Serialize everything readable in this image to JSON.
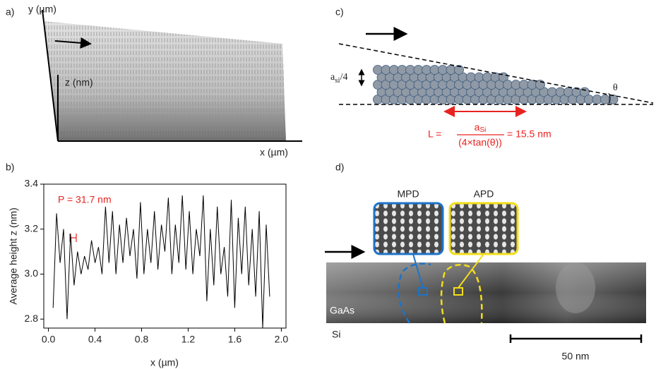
{
  "panels": {
    "a": {
      "label": "a)",
      "y_axis": "y (µm)",
      "z_axis": "z (nm)",
      "x_axis": "x (µm)"
    },
    "b": {
      "label": "b)"
    },
    "c": {
      "label": "c)",
      "step": {
        "base": "a",
        "sub": "si",
        "rest": "/4"
      },
      "angle": "θ",
      "formula": {
        "lhs": "L =",
        "num": {
          "base": "a",
          "sub": "Si"
        },
        "den": "(4×tan(θ))",
        "rhs": "= 15.5 nm"
      }
    },
    "d": {
      "label": "d)",
      "inset_left": "MPD",
      "inset_right": "APD",
      "layer_top": "GaAs",
      "layer_bottom": "Si",
      "scale": "50 nm"
    }
  },
  "chart_data": {
    "type": "line",
    "xlabel": "x (µm)",
    "ylabel": "Average height z (nm)",
    "annotation": "P = 31.7 nm",
    "color": "#000000",
    "x": [
      0.04,
      0.07,
      0.1,
      0.13,
      0.16,
      0.19,
      0.22,
      0.25,
      0.28,
      0.31,
      0.34,
      0.37,
      0.4,
      0.43,
      0.46,
      0.49,
      0.52,
      0.55,
      0.58,
      0.61,
      0.64,
      0.67,
      0.7,
      0.73,
      0.76,
      0.79,
      0.82,
      0.85,
      0.88,
      0.91,
      0.94,
      0.97,
      1.0,
      1.03,
      1.06,
      1.09,
      1.12,
      1.15,
      1.18,
      1.21,
      1.24,
      1.27,
      1.3,
      1.33,
      1.36,
      1.39,
      1.42,
      1.45,
      1.48,
      1.51,
      1.54,
      1.57,
      1.6,
      1.63,
      1.66,
      1.69,
      1.72,
      1.75,
      1.78,
      1.81,
      1.84,
      1.87,
      1.9
    ],
    "values": [
      2.85,
      3.27,
      3.05,
      3.2,
      2.8,
      3.18,
      2.95,
      3.1,
      3.0,
      3.08,
      3.02,
      3.15,
      3.05,
      3.12,
      3.0,
      3.3,
      3.05,
      3.28,
      3.0,
      3.22,
      3.05,
      3.25,
      3.08,
      3.2,
      2.98,
      3.32,
      3.0,
      3.2,
      3.05,
      3.28,
      3.02,
      3.22,
      3.1,
      3.34,
      3.0,
      3.22,
      3.05,
      3.35,
      3.02,
      3.28,
      3.0,
      3.2,
      3.08,
      3.35,
      2.88,
      3.2,
      2.95,
      3.3,
      3.0,
      3.12,
      2.9,
      3.33,
      2.85,
      3.25,
      3.0,
      3.3,
      2.95,
      3.2,
      2.9,
      3.28,
      2.76,
      3.22,
      2.9
    ],
    "xlim": [
      -0.04,
      2.04
    ],
    "ylim": [
      2.76,
      3.4
    ],
    "xticks": [
      {
        "value": 0,
        "label": "0.0"
      },
      0.4,
      0.8,
      1.2,
      1.6,
      {
        "value": 2,
        "label": "2.0"
      }
    ],
    "yticks": [
      2.8,
      {
        "value": 3,
        "label": "3.0"
      },
      3.2,
      3.4
    ]
  }
}
